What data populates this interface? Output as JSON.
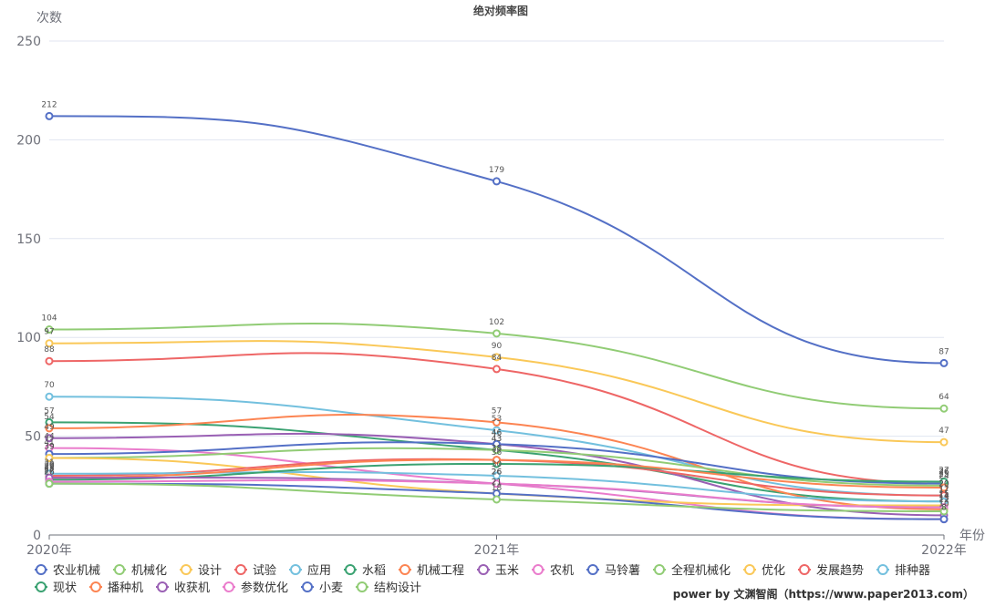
{
  "chart_data": {
    "type": "line",
    "title": "绝对频率图",
    "ylabel": "次数",
    "xlabel": "年份",
    "categories": [
      "2020年",
      "2021年",
      "2022年"
    ],
    "ylim": [
      0,
      250
    ],
    "yticks": [
      0,
      50,
      100,
      150,
      200,
      250
    ],
    "legend_position": "bottom-left",
    "smooth": true,
    "series": [
      {
        "name": "农业机械",
        "color": "#5470c6",
        "values": [
          212,
          179,
          87
        ]
      },
      {
        "name": "机械化",
        "color": "#91cc75",
        "values": [
          104,
          102,
          64
        ]
      },
      {
        "name": "设计",
        "color": "#fac858",
        "values": [
          97,
          90,
          47
        ]
      },
      {
        "name": "试验",
        "color": "#ee6666",
        "values": [
          88,
          84,
          26
        ]
      },
      {
        "name": "应用",
        "color": "#73c0de",
        "values": [
          70,
          53,
          20
        ]
      },
      {
        "name": "水稻",
        "color": "#3ba272",
        "values": [
          57,
          43,
          17
        ]
      },
      {
        "name": "机械工程",
        "color": "#fc8452",
        "values": [
          54,
          57,
          13
        ]
      },
      {
        "name": "玉米",
        "color": "#9a60b4",
        "values": [
          49,
          46,
          10
        ]
      },
      {
        "name": "农机",
        "color": "#ea7ccc",
        "values": [
          44,
          26,
          8
        ]
      },
      {
        "name": "马铃薯",
        "color": "#5470c6",
        "values": [
          41,
          46,
          26
        ]
      },
      {
        "name": "全程机械化",
        "color": "#91cc75",
        "values": [
          39,
          43,
          25
        ]
      },
      {
        "name": "优化",
        "color": "#fac858",
        "values": [
          39,
          21,
          15
        ]
      },
      {
        "name": "发展趋势",
        "color": "#ee6666",
        "values": [
          30,
          38,
          20
        ]
      },
      {
        "name": "排种器",
        "color": "#73c0de",
        "values": [
          31,
          30,
          17
        ]
      },
      {
        "name": "现状",
        "color": "#3ba272",
        "values": [
          28,
          36,
          27
        ]
      },
      {
        "name": "播种机",
        "color": "#fc8452",
        "values": [
          29,
          38,
          24
        ]
      },
      {
        "name": "收获机",
        "color": "#9a60b4",
        "values": [
          29,
          26,
          14
        ]
      },
      {
        "name": "参数优化",
        "color": "#ea7ccc",
        "values": [
          27,
          26,
          14
        ]
      },
      {
        "name": "小麦",
        "color": "#5470c6",
        "values": [
          26,
          21,
          8
        ]
      },
      {
        "name": "结构设计",
        "color": "#91cc75",
        "values": [
          26,
          18,
          12
        ]
      }
    ]
  },
  "footer": {
    "text": "power by 文渊智阁（https://www.paper2013.com）"
  }
}
